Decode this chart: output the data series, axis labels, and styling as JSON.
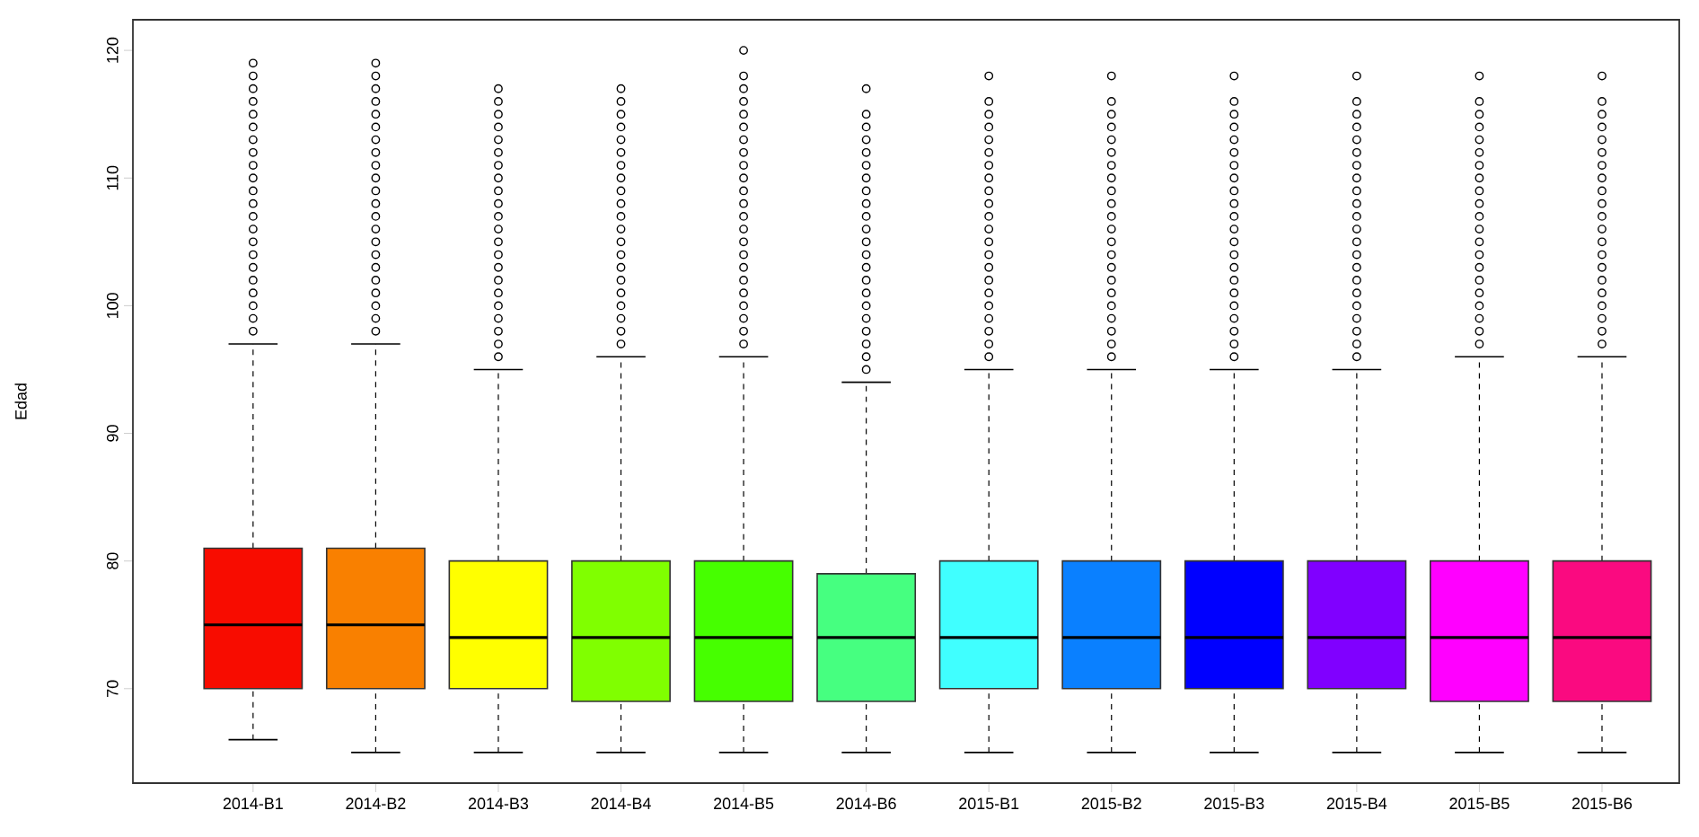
{
  "chart_data": {
    "type": "box",
    "ylabel": "Edad",
    "categories": [
      "2014-B1",
      "2014-B2",
      "2014-B3",
      "2014-B4",
      "2014-B5",
      "2014-B6",
      "2015-B1",
      "2015-B2",
      "2015-B3",
      "2015-B4",
      "2015-B5",
      "2015-B6"
    ],
    "colors": [
      "#f80c00",
      "#f98000",
      "#ffff00",
      "#80ff00",
      "#46ff00",
      "#46ff80",
      "#40ffff",
      "#0a80ff",
      "#0000ff",
      "#8000ff",
      "#ff00ff",
      "#fa0a80"
    ],
    "boxes": [
      {
        "low": 66,
        "q1": 70,
        "median": 75,
        "q3": 81,
        "high": 97,
        "outliers": [
          98,
          99,
          100,
          101,
          102,
          103,
          104,
          105,
          106,
          107,
          108,
          109,
          110,
          111,
          112,
          113,
          114,
          115,
          116,
          117,
          118,
          119
        ]
      },
      {
        "low": 65,
        "q1": 70,
        "median": 75,
        "q3": 81,
        "high": 97,
        "outliers": [
          98,
          99,
          100,
          101,
          102,
          103,
          104,
          105,
          106,
          107,
          108,
          109,
          110,
          111,
          112,
          113,
          114,
          115,
          116,
          117,
          118,
          119
        ]
      },
      {
        "low": 65,
        "q1": 70,
        "median": 74,
        "q3": 80,
        "high": 95,
        "outliers": [
          96,
          97,
          98,
          99,
          100,
          101,
          102,
          103,
          104,
          105,
          106,
          107,
          108,
          109,
          110,
          111,
          112,
          113,
          114,
          115,
          116,
          117
        ]
      },
      {
        "low": 65,
        "q1": 69,
        "median": 74,
        "q3": 80,
        "high": 96,
        "outliers": [
          97,
          98,
          99,
          100,
          101,
          102,
          103,
          104,
          105,
          106,
          107,
          108,
          109,
          110,
          111,
          112,
          113,
          114,
          115,
          116,
          117
        ]
      },
      {
        "low": 65,
        "q1": 69,
        "median": 74,
        "q3": 80,
        "high": 96,
        "outliers": [
          97,
          98,
          99,
          100,
          101,
          102,
          103,
          104,
          105,
          106,
          107,
          108,
          109,
          110,
          111,
          112,
          113,
          114,
          115,
          116,
          117,
          118,
          120
        ]
      },
      {
        "low": 65,
        "q1": 69,
        "median": 74,
        "q3": 79,
        "high": 94,
        "outliers": [
          95,
          96,
          97,
          98,
          99,
          100,
          101,
          102,
          103,
          104,
          105,
          106,
          107,
          108,
          109,
          110,
          111,
          112,
          113,
          114,
          115,
          117
        ]
      },
      {
        "low": 65,
        "q1": 70,
        "median": 74,
        "q3": 80,
        "high": 95,
        "outliers": [
          96,
          97,
          98,
          99,
          100,
          101,
          102,
          103,
          104,
          105,
          106,
          107,
          108,
          109,
          110,
          111,
          112,
          113,
          114,
          115,
          116,
          118
        ]
      },
      {
        "low": 65,
        "q1": 70,
        "median": 74,
        "q3": 80,
        "high": 95,
        "outliers": [
          96,
          97,
          98,
          99,
          100,
          101,
          102,
          103,
          104,
          105,
          106,
          107,
          108,
          109,
          110,
          111,
          112,
          113,
          114,
          115,
          116,
          118
        ]
      },
      {
        "low": 65,
        "q1": 70,
        "median": 74,
        "q3": 80,
        "high": 95,
        "outliers": [
          96,
          97,
          98,
          99,
          100,
          101,
          102,
          103,
          104,
          105,
          106,
          107,
          108,
          109,
          110,
          111,
          112,
          113,
          114,
          115,
          116,
          118
        ]
      },
      {
        "low": 65,
        "q1": 70,
        "median": 74,
        "q3": 80,
        "high": 95,
        "outliers": [
          96,
          97,
          98,
          99,
          100,
          101,
          102,
          103,
          104,
          105,
          106,
          107,
          108,
          109,
          110,
          111,
          112,
          113,
          114,
          115,
          116,
          118
        ]
      },
      {
        "low": 65,
        "q1": 69,
        "median": 74,
        "q3": 80,
        "high": 96,
        "outliers": [
          97,
          98,
          99,
          100,
          101,
          102,
          103,
          104,
          105,
          106,
          107,
          108,
          109,
          110,
          111,
          112,
          113,
          114,
          115,
          116,
          118
        ]
      },
      {
        "low": 65,
        "q1": 69,
        "median": 74,
        "q3": 80,
        "high": 96,
        "outliers": [
          97,
          98,
          99,
          100,
          101,
          102,
          103,
          104,
          105,
          106,
          107,
          108,
          109,
          110,
          111,
          112,
          113,
          114,
          115,
          116,
          118
        ]
      }
    ],
    "ylim": [
      62.6,
      122.4
    ],
    "yticks": [
      70,
      80,
      90,
      100,
      110,
      120
    ],
    "marker": "circle",
    "grid": false
  }
}
